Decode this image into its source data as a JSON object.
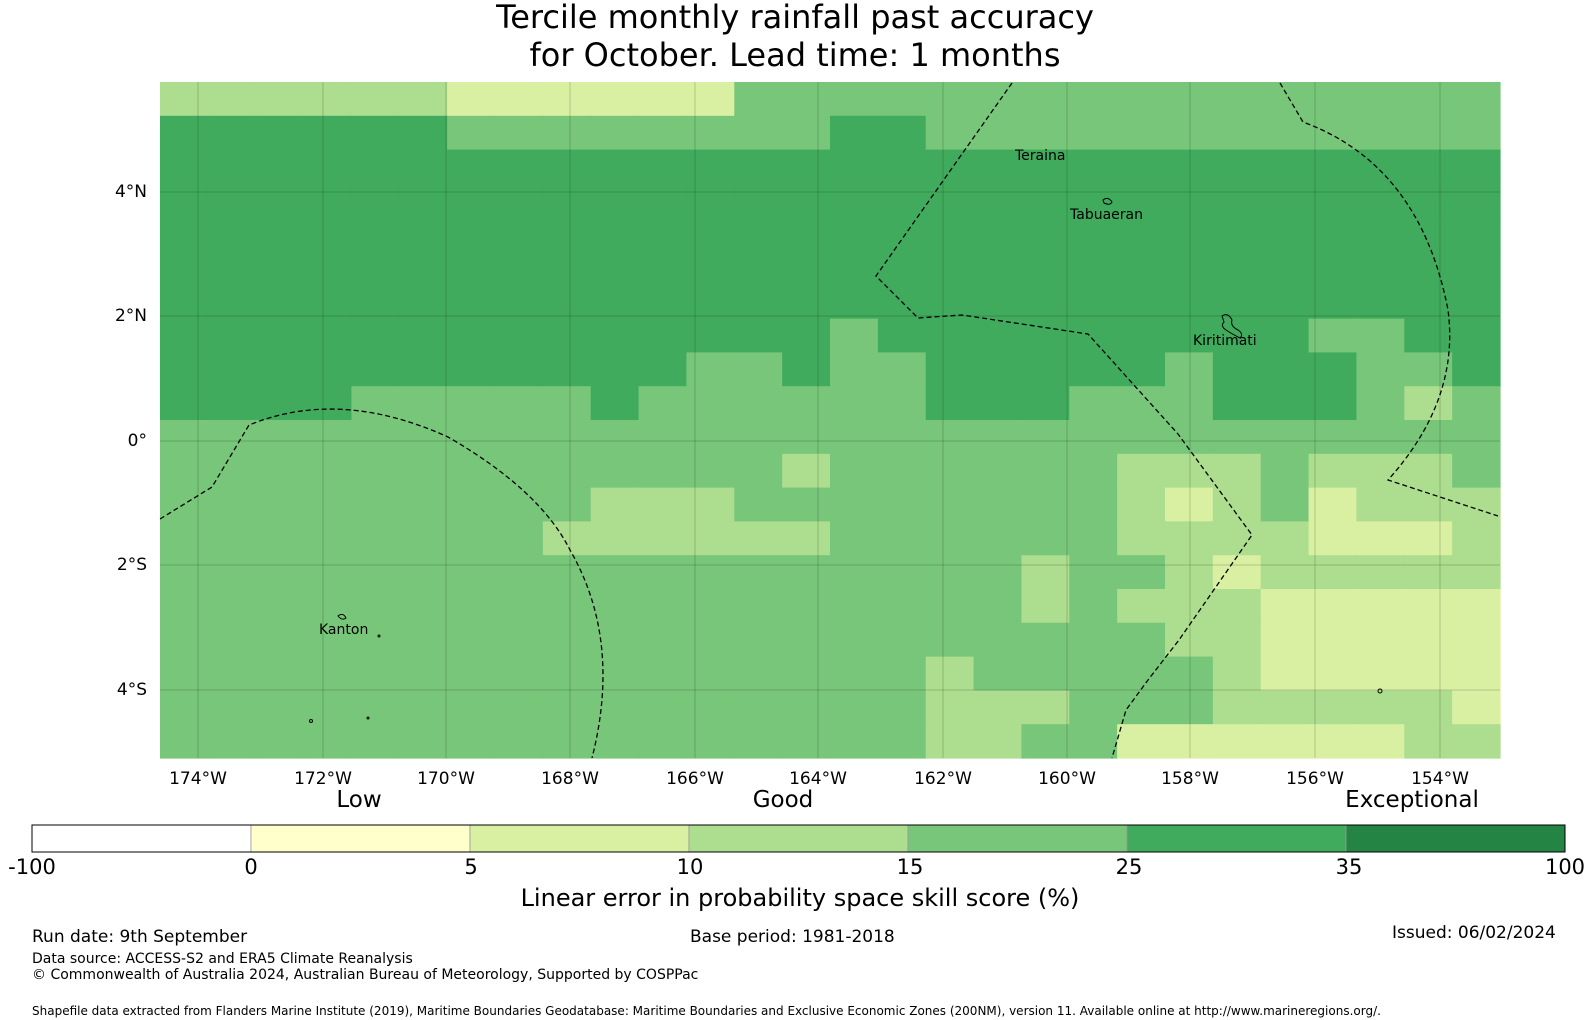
{
  "title": {
    "line1": "Tercile monthly rainfall past accuracy",
    "line2": "for October. Lead time: 1 months"
  },
  "map": {
    "lat_labels": [
      "4°N",
      "2°N",
      "0°",
      "2°S",
      "4°S"
    ],
    "lon_labels": [
      "174°W",
      "172°W",
      "170°W",
      "168°W",
      "166°W",
      "164°W",
      "162°W",
      "160°W",
      "158°W",
      "156°W",
      "154°W"
    ],
    "places": [
      "Teraina",
      "Tabuaeran",
      "Kiritimati",
      "Kanton"
    ],
    "skill_grid_levels": [
      "3333332222224444444444444444",
      "5555554444444455444444444444",
      "5555555555555555555555555555",
      "5555555555555555555555555555",
      "5555555555555555555555555555",
      "5555555555555555555555555555",
      "5555555555555555555555555555",
      "5555555555555545555555554455",
      "5555555555544544555554555445",
      "5555444445444444555444555434",
      "4444444444444444444444444444",
      "4444444444444344444433343334",
      "4444444443334444444432342333",
      "4444444433333344444433332223",
      "4444444444444444443443233333",
      "4444444444444444443433322222",
      "4444444444444444444443322222",
      "4444444444444444344444322222",
      "4444444444444444333444333332",
      "4444444444444444334422222233"
    ]
  },
  "colorbar": {
    "category_labels": [
      "Low",
      "Good",
      "Exceptional"
    ],
    "ticks": [
      "-100",
      "0",
      "5",
      "10",
      "15",
      "25",
      "35",
      "100"
    ],
    "colors": [
      "#ffffff",
      "#ffffcc",
      "#d9f0a3",
      "#addd8e",
      "#78c679",
      "#41ab5d",
      "#238443"
    ],
    "title": "Linear error in probability space skill score (%)"
  },
  "footer": {
    "run_date": "Run date: 9th September",
    "base_period": "Base period: 1981-2018",
    "issued": "Issued: 06/02/2024",
    "data_source": "Data source: ACCESS-S2 and ERA5 Climate Reanalysis",
    "copyright": "© Commonwealth of Australia 2024, Australian Bureau of Meteorology, Supported by COSPPac",
    "shapefile": "Shapefile data extracted from Flanders Marine Institute (2019), Maritime Boundaries Geodatabase: Maritime Boundaries and Exclusive Economic Zones (200NM), version 11. Available online at http://www.marineregions.org/."
  }
}
